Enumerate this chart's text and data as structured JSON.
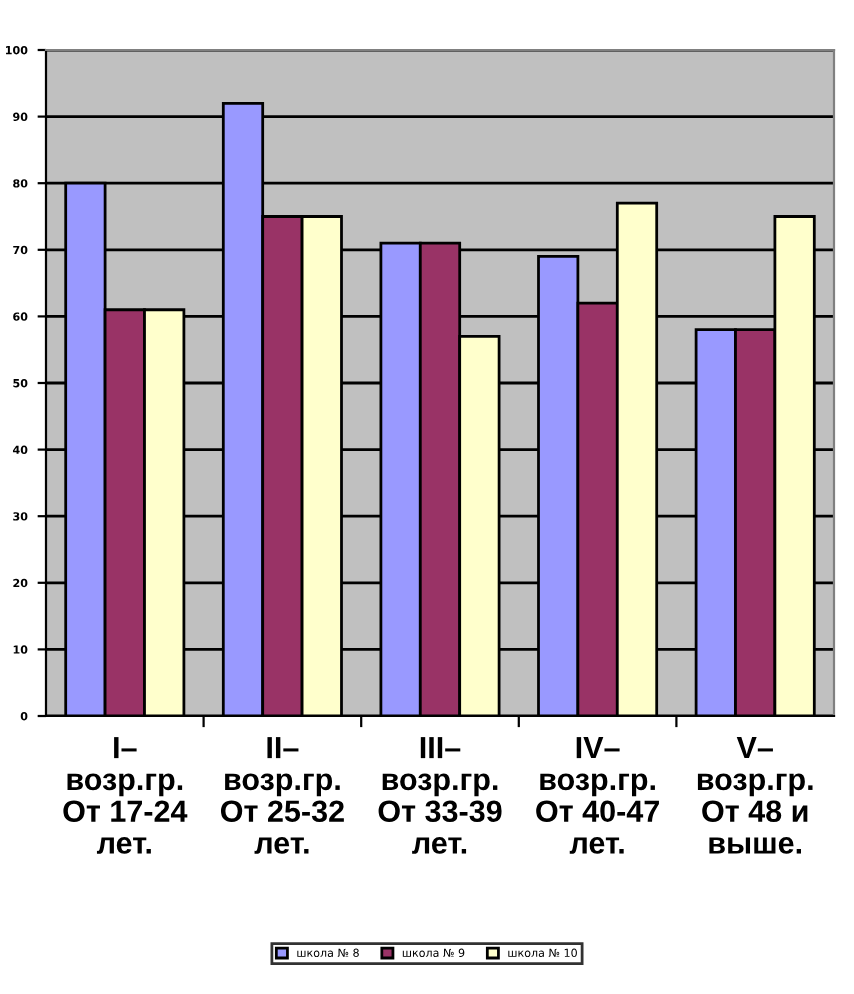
{
  "chart_data": {
    "type": "bar",
    "categories": [
      "I–\nвозр.гр.\nОт 17-24\nлет.",
      "II–\nвозр.гр.\nОт 25-32\nлет.",
      "III–\nвозр.гр.\nОт 33-39\nлет.",
      "IV–\nвозр.гр.\nОт 40-47\nлет.",
      "V–\nвозр.гр.\nОт 48 и\nвыше."
    ],
    "series": [
      {
        "name": "школа № 8",
        "color": "#9999ff",
        "values": [
          80,
          92,
          71,
          69,
          58
        ]
      },
      {
        "name": "школа № 9",
        "color": "#993366",
        "values": [
          61,
          75,
          71,
          62,
          58
        ]
      },
      {
        "name": "школа № 10",
        "color": "#ffffcc",
        "values": [
          61,
          75,
          57,
          77,
          75
        ]
      }
    ],
    "ylim": [
      0,
      100
    ],
    "yticks": [
      0,
      10,
      20,
      30,
      40,
      50,
      60,
      70,
      80,
      90,
      100
    ],
    "grid": "y",
    "legend": "bottom"
  }
}
